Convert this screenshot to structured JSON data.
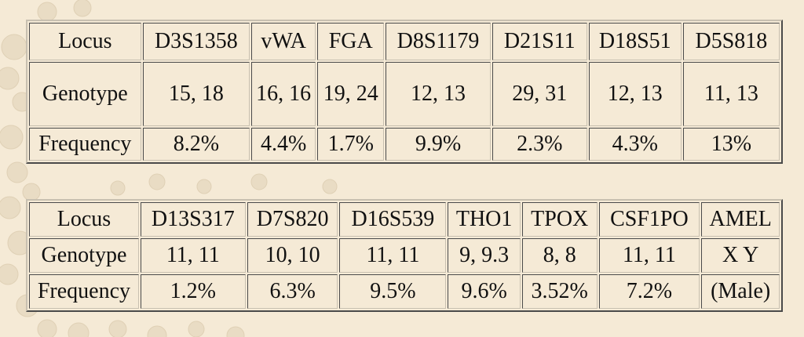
{
  "tables": [
    {
      "row_labels": [
        "Locus",
        "Genotype",
        "Frequency"
      ],
      "columns": [
        {
          "locus": "D3S1358",
          "genotype": "15, 18",
          "frequency": "8.2%"
        },
        {
          "locus": "vWA",
          "genotype": "16, 16",
          "frequency": "4.4%"
        },
        {
          "locus": "FGA",
          "genotype": "19, 24",
          "frequency": "1.7%"
        },
        {
          "locus": "D8S1179",
          "genotype": "12, 13",
          "frequency": "9.9%"
        },
        {
          "locus": "D21S11",
          "genotype": "29, 31",
          "frequency": "2.3%"
        },
        {
          "locus": "D18S51",
          "genotype": "12, 13",
          "frequency": "4.3%"
        },
        {
          "locus": "D5S818",
          "genotype": "11, 13",
          "frequency": "13%"
        }
      ]
    },
    {
      "row_labels": [
        "Locus",
        "Genotype",
        "Frequency"
      ],
      "columns": [
        {
          "locus": "D13S317",
          "genotype": "11, 11",
          "frequency": "1.2%"
        },
        {
          "locus": "D7S820",
          "genotype": "10, 10",
          "frequency": "6.3%"
        },
        {
          "locus": "D16S539",
          "genotype": "11, 11",
          "frequency": "9.5%"
        },
        {
          "locus": "THO1",
          "genotype": "9, 9.3",
          "frequency": "9.6%"
        },
        {
          "locus": "TPOX",
          "genotype": "8, 8",
          "frequency": "3.52%"
        },
        {
          "locus": "CSF1PO",
          "genotype": "11, 11",
          "frequency": "7.2%"
        },
        {
          "locus": "AMEL",
          "genotype": "X Y",
          "frequency": "(Male)"
        }
      ]
    }
  ]
}
